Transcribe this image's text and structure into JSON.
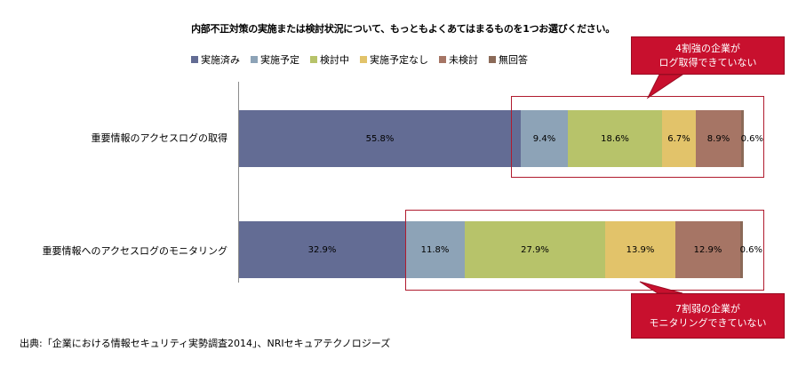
{
  "chart_data": {
    "type": "bar",
    "orientation": "horizontal",
    "stacked": true,
    "normalized": true,
    "title": "内部不正対策の実施または検討状況について、もっともよくあてはまるものを1つお選びください。",
    "categories": [
      "重要情報のアクセスログの取得",
      "重要情報へのアクセスログのモニタリング"
    ],
    "series": [
      {
        "name": "実施済み",
        "color": "#636c94",
        "values": [
          55.8,
          32.9
        ]
      },
      {
        "name": "実施予定",
        "color": "#8da3b7",
        "values": [
          9.4,
          11.8
        ]
      },
      {
        "name": "検討中",
        "color": "#b7c36a",
        "values": [
          18.6,
          27.9
        ]
      },
      {
        "name": "実施予定なし",
        "color": "#e2c36a",
        "values": [
          6.7,
          13.9
        ]
      },
      {
        "name": "未検討",
        "color": "#a67565",
        "values": [
          8.9,
          12.9
        ]
      },
      {
        "name": "無回答",
        "color": "#8b6a58",
        "values": [
          0.6,
          0.6
        ]
      }
    ],
    "data_labels": [
      [
        "55.8%",
        "9.4%",
        "18.6%",
        "6.7%",
        "8.9%",
        "0.6%"
      ],
      [
        "32.9%",
        "11.8%",
        "27.9%",
        "13.9%",
        "12.9%",
        "0.6%"
      ]
    ],
    "legend_position": "top",
    "grid": false
  },
  "callouts": [
    {
      "line1": "4割強の企業が",
      "line2": "ログ取得できていない"
    },
    {
      "line1": "7割弱の企業が",
      "line2": "モニタリングできていない"
    }
  ],
  "source": "出典:「企業における情報セキュリティ実勢調査2014」、NRIセキュアテクノロジーズ"
}
